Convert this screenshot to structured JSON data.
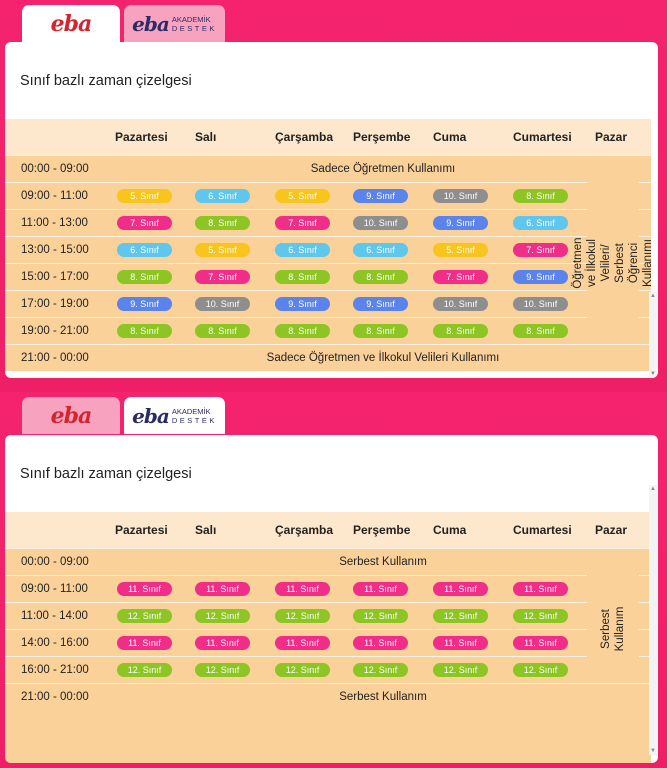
{
  "colors": {
    "background": "#ef1f67",
    "panel": "#ffffff",
    "table_body": "#fbd19a",
    "table_header": "#fde7cd"
  },
  "tabs": {
    "eba_label": "eba",
    "akademik_logo": "eba",
    "akademik_line1": "AKADEMİK",
    "akademik_line2": "DESTEK"
  },
  "days": [
    "Pazartesi",
    "Salı",
    "Çarşamba",
    "Perşembe",
    "Cuma",
    "Cumartesi",
    "Pazar"
  ],
  "schedule1": {
    "title": "Sınıf bazlı zaman çizelgesi",
    "top_row": {
      "time": "00:00 - 09:00",
      "text": "Sadece Öğretmen Kullanımı"
    },
    "rows": [
      {
        "time": "09:00 - 11:00",
        "cells": [
          {
            "label": "5. Sınıf",
            "color": "#f7c51d"
          },
          {
            "label": "6. Sınıf",
            "color": "#5fc6ee"
          },
          {
            "label": "5. Sınıf",
            "color": "#f7c51d"
          },
          {
            "label": "9. Sınıf",
            "color": "#5b83ec"
          },
          {
            "label": "10. Sınıf",
            "color": "#8e8e8e"
          },
          {
            "label": "8. Sınıf",
            "color": "#8dc524"
          }
        ]
      },
      {
        "time": "11:00 -  13:00",
        "cells": [
          {
            "label": "7. Sınıf",
            "color": "#f02e8a"
          },
          {
            "label": "8. Sınıf",
            "color": "#8dc524"
          },
          {
            "label": "7. Sınıf",
            "color": "#f02e8a"
          },
          {
            "label": "10. Sınıf",
            "color": "#8e8e8e"
          },
          {
            "label": "9. Sınıf",
            "color": "#5b83ec"
          },
          {
            "label": "6. Sınıf",
            "color": "#5fc6ee"
          }
        ]
      },
      {
        "time": "13:00 -  15:00",
        "cells": [
          {
            "label": "6. Sınıf",
            "color": "#5fc6ee"
          },
          {
            "label": "5. Sınıf",
            "color": "#f7c51d"
          },
          {
            "label": "6. Sınıf",
            "color": "#5fc6ee"
          },
          {
            "label": "6. Sınıf",
            "color": "#5fc6ee"
          },
          {
            "label": "5. Sınıf",
            "color": "#f7c51d"
          },
          {
            "label": "7. Sınıf",
            "color": "#f02e8a"
          }
        ]
      },
      {
        "time": "15:00 -  17:00",
        "cells": [
          {
            "label": "8. Sınıf",
            "color": "#8dc524"
          },
          {
            "label": "7. Sınıf",
            "color": "#f02e8a"
          },
          {
            "label": "8. Sınıf",
            "color": "#8dc524"
          },
          {
            "label": "8. Sınıf",
            "color": "#8dc524"
          },
          {
            "label": "7. Sınıf",
            "color": "#f02e8a"
          },
          {
            "label": "9. Sınıf",
            "color": "#5b83ec"
          }
        ]
      },
      {
        "time": "17:00 -  19:00",
        "cells": [
          {
            "label": "9. Sınıf",
            "color": "#5b83ec"
          },
          {
            "label": "10. Sınıf",
            "color": "#8e8e8e"
          },
          {
            "label": "9. Sınıf",
            "color": "#5b83ec"
          },
          {
            "label": "9. Sınıf",
            "color": "#5b83ec"
          },
          {
            "label": "10. Sınıf",
            "color": "#8e8e8e"
          },
          {
            "label": "10. Sınıf",
            "color": "#8e8e8e"
          }
        ]
      },
      {
        "time": "19:00 -  21:00",
        "cells": [
          {
            "label": "8. Sınıf",
            "color": "#8dc524"
          },
          {
            "label": "8. Sınıf",
            "color": "#8dc524"
          },
          {
            "label": "8. Sınıf",
            "color": "#8dc524"
          },
          {
            "label": "8. Sınıf",
            "color": "#8dc524"
          },
          {
            "label": "8. Sınıf",
            "color": "#8dc524"
          },
          {
            "label": "8. Sınıf",
            "color": "#8dc524"
          }
        ]
      }
    ],
    "pazar_text": "Öğretmen ve İlkokul Velileri/ Serbest Öğrenci Kullanımı",
    "bottom_row": {
      "time": "21:00 -  00:00",
      "text": "Sadece Öğretmen ve İlkokul Velileri Kullanımı"
    }
  },
  "schedule2": {
    "title": "Sınıf bazlı zaman çizelgesi",
    "top_row": {
      "time": "00:00 - 09:00",
      "text": "Serbest Kullanım"
    },
    "rows": [
      {
        "time": "09:00 - 11:00",
        "cells": [
          {
            "label": "11. Sınıf",
            "color": "#f02e8a"
          },
          {
            "label": "11. Sınıf",
            "color": "#f02e8a"
          },
          {
            "label": "11. Sınıf",
            "color": "#f02e8a"
          },
          {
            "label": "11. Sınıf",
            "color": "#f02e8a"
          },
          {
            "label": "11. Sınıf",
            "color": "#f02e8a"
          },
          {
            "label": "11. Sınıf",
            "color": "#f02e8a"
          }
        ]
      },
      {
        "time": "11:00 -  14:00",
        "cells": [
          {
            "label": "12. Sınıf",
            "color": "#8dc524"
          },
          {
            "label": "12. Sınıf",
            "color": "#8dc524"
          },
          {
            "label": "12. Sınıf",
            "color": "#8dc524"
          },
          {
            "label": "12. Sınıf",
            "color": "#8dc524"
          },
          {
            "label": "12. Sınıf",
            "color": "#8dc524"
          },
          {
            "label": "12. Sınıf",
            "color": "#8dc524"
          }
        ]
      },
      {
        "time": "14:00 -  16:00",
        "cells": [
          {
            "label": "11. Sınıf",
            "color": "#f02e8a"
          },
          {
            "label": "11. Sınıf",
            "color": "#f02e8a"
          },
          {
            "label": "11. Sınıf",
            "color": "#f02e8a"
          },
          {
            "label": "11. Sınıf",
            "color": "#f02e8a"
          },
          {
            "label": "11. Sınıf",
            "color": "#f02e8a"
          },
          {
            "label": "11. Sınıf",
            "color": "#f02e8a"
          }
        ]
      },
      {
        "time": "16:00 -  21:00",
        "cells": [
          {
            "label": "12. Sınıf",
            "color": "#8dc524"
          },
          {
            "label": "12. Sınıf",
            "color": "#8dc524"
          },
          {
            "label": "12. Sınıf",
            "color": "#8dc524"
          },
          {
            "label": "12. Sınıf",
            "color": "#8dc524"
          },
          {
            "label": "12. Sınıf",
            "color": "#8dc524"
          },
          {
            "label": "12. Sınıf",
            "color": "#8dc524"
          }
        ]
      }
    ],
    "pazar_text": "Serbest Kullanım",
    "bottom_row": {
      "time": "21:00 - 00:00",
      "text": "Serbest Kullanım"
    }
  }
}
